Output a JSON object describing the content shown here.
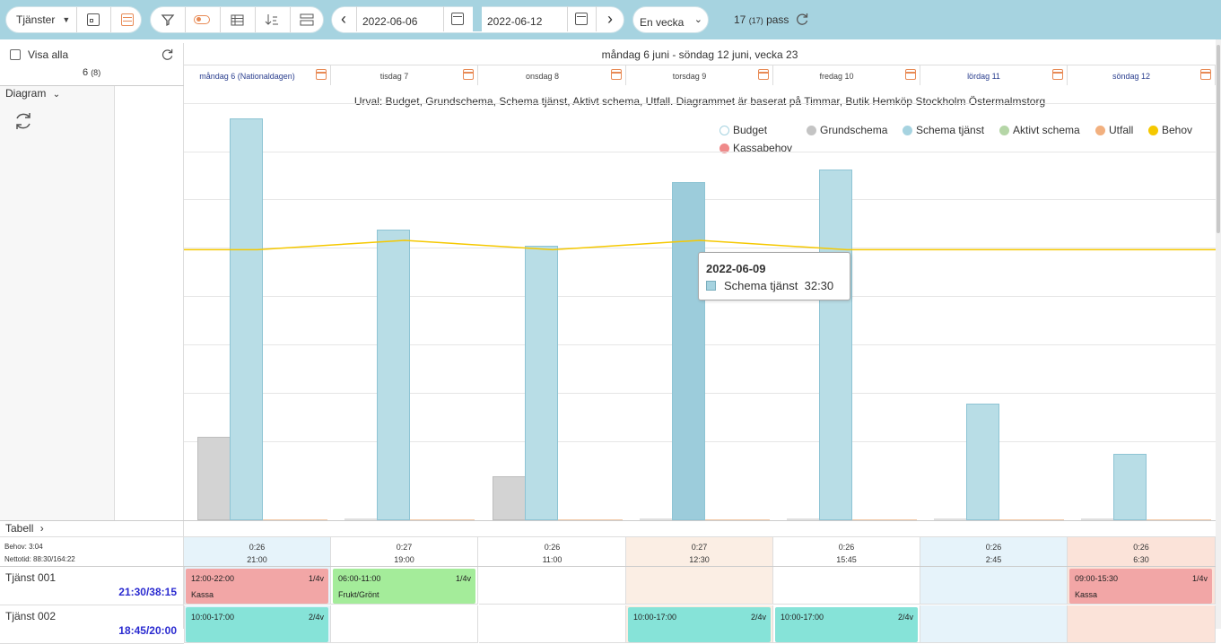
{
  "toolbar": {
    "dropdown_label": "Tjänster",
    "start_date": "2022-06-06",
    "end_date": "2022-06-12",
    "period_select": "En vecka",
    "pass_count": "17",
    "pass_count_paren": "(17)",
    "pass_label": "pass"
  },
  "left": {
    "show_all": "Visa alla",
    "count": "6",
    "count_paren": "(8)",
    "diagram_label": "Diagram",
    "table_label": "Tabell",
    "behov": "Behov: 3:04",
    "nettotid": "Nettotid: 88:30/164:22"
  },
  "week_title": "måndag 6 juni - söndag 12 juni, vecka 23",
  "days": [
    {
      "label": "måndag 6 (Nationaldagen)",
      "behov": "0:26",
      "hours": "21:00",
      "bg": "#e6f3fa"
    },
    {
      "label": "tisdag 7",
      "behov": "0:27",
      "hours": "19:00",
      "bg": "#ffffff"
    },
    {
      "label": "onsdag 8",
      "behov": "0:26",
      "hours": "11:00",
      "bg": "#ffffff"
    },
    {
      "label": "torsdag 9",
      "behov": "0:27",
      "hours": "12:30",
      "bg": "#fbeee4"
    },
    {
      "label": "fredag 10",
      "behov": "0:26",
      "hours": "15:45",
      "bg": "#ffffff"
    },
    {
      "label": "lördag 11",
      "behov": "0:26",
      "hours": "2:45",
      "bg": "#e6f3fa"
    },
    {
      "label": "söndag 12",
      "behov": "0:26",
      "hours": "6:30",
      "bg": "#fbe3d9"
    }
  ],
  "chart_caption": "Urval: Budget, Grundschema, Schema tjänst, Aktivt schema, Utfall. Diagrammet är baserat på Timmar, Butik Hemköp Stockholm Östermalmstorg",
  "legend": [
    {
      "name": "Budget",
      "color": "#ffffff",
      "border": "#a6d3e0"
    },
    {
      "name": "Grundschema",
      "color": "#c4c4c4",
      "border": "#c4c4c4"
    },
    {
      "name": "Schema tjänst",
      "color": "#a6d3e0",
      "border": "#a6d3e0"
    },
    {
      "name": "Aktivt schema",
      "color": "#b5d6a7",
      "border": "#b5d6a7"
    },
    {
      "name": "Utfall",
      "color": "#f2b07f",
      "border": "#f2b07f"
    },
    {
      "name": "Behov",
      "color": "#f5c800",
      "border": "#f5c800"
    },
    {
      "name": "Kassabehov",
      "color": "#ef8a8a",
      "border": "#ef8a8a"
    }
  ],
  "chart_data": {
    "type": "bar",
    "categories": [
      "2022-06-06",
      "2022-06-07",
      "2022-06-08",
      "2022-06-09",
      "2022-06-10",
      "2022-06-11",
      "2022-06-12"
    ],
    "series": [
      {
        "name": "Grundschema",
        "values": [
          8,
          0,
          4.2,
          0,
          0,
          0,
          0
        ]
      },
      {
        "name": "Schema tjänst",
        "values": [
          38.6,
          27.9,
          26.4,
          32.5,
          33.7,
          11.2,
          6.4
        ]
      },
      {
        "name": "Behov",
        "values": [
          26.0,
          26.9,
          26.0,
          26.9,
          26.0,
          26.0,
          26.0
        ]
      }
    ],
    "ylim": [
      0,
      40
    ]
  },
  "tooltip": {
    "date": "2022-06-09",
    "series": "Schema tjänst",
    "value": "32:30"
  },
  "rows": [
    {
      "name": "Tjänst 001",
      "total": "21:30/38:15",
      "shifts": [
        {
          "day": 0,
          "time": "12:00-22:00",
          "week": "1/4v",
          "note": "Kassa",
          "color": "#f2a6a6"
        },
        {
          "day": 1,
          "time": "06:00-11:00",
          "week": "1/4v",
          "note": "Frukt/Grönt",
          "color": "#a4ec9a"
        },
        {
          "day": 6,
          "time": "09:00-15:30",
          "week": "1/4v",
          "note": "Kassa",
          "color": "#f2a6a6"
        }
      ]
    },
    {
      "name": "Tjänst 002",
      "total": "18:45/20:00",
      "shifts": [
        {
          "day": 0,
          "time": "10:00-17:00",
          "week": "2/4v",
          "note": "",
          "color": "#86e3d8"
        },
        {
          "day": 3,
          "time": "10:00-17:00",
          "week": "2/4v",
          "note": "",
          "color": "#86e3d8"
        },
        {
          "day": 4,
          "time": "10:00-17:00",
          "week": "2/4v",
          "note": "",
          "color": "#86e3d8"
        }
      ]
    }
  ]
}
